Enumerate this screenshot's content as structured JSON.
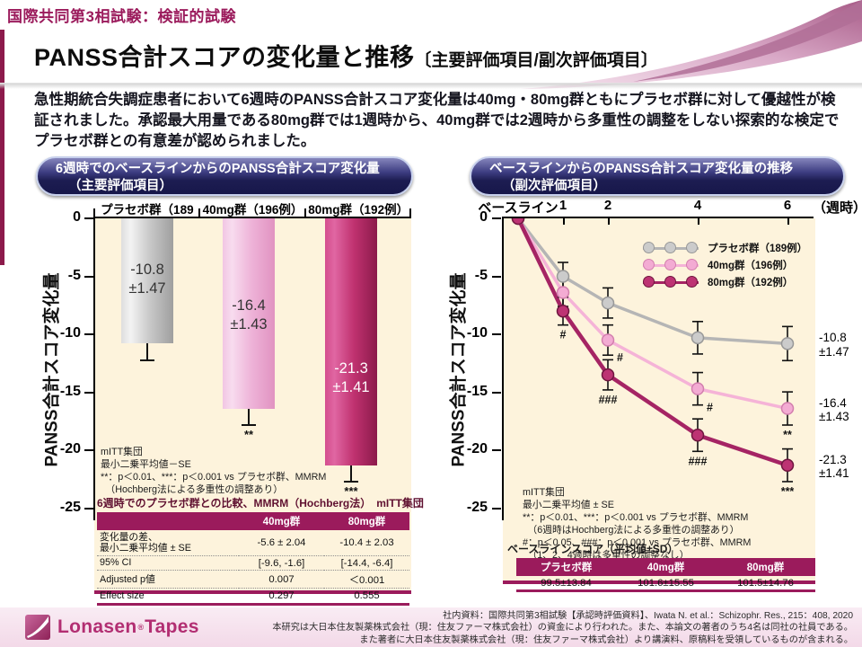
{
  "header": {
    "eyebrow": "国際共同第3相試験：検証的試験",
    "title_main": "PANSS合計スコアの変化量と推移",
    "title_sub": "〔主要評価項目/副次評価項目〕"
  },
  "intro": "急性期統合失調症患者において6週時のPANSS合計スコア変化量は40mg・80mg群ともにプラセボ群に対して優越性が検証されました。承認最大用量である80mg群では1週時から、40mg群では2週時から多重性の調整をしない探索的な検定でプラセボ群との有意差が認められました。",
  "colors": {
    "accent_magenta": "#9b1b5c",
    "pill_navy": "#1d1d52",
    "plot_cream": "#fdf3dc",
    "placebo_gray": "#b5b5b5",
    "dose40_pink": "#f5b3d7",
    "dose80_magenta": "#a52464",
    "logo_pink": "#b22e72"
  },
  "left_panel": {
    "pill_line1": "6週時でのベースラインからのPANSS合計スコア変化量",
    "pill_line2": "（主要評価項目）",
    "ylabel": "PANSS合計スコア変化量",
    "footnote": "mITT集団\n最小二乗平均値－SE\n**：p＜0.01、***：p＜0.001 vs プラセボ群、MMRM\n　（Hochberg法による多重性の調整あり）",
    "table": {
      "title": "6週時でのプラセボ群との比較、MMRM（Hochberg法）　mITT集団",
      "headers": [
        "",
        "40mg群",
        "80mg群"
      ],
      "rows": [
        [
          "変化量の差、\n最小二乗平均値 ± SE",
          "-5.6 ± 2.04",
          "-10.4 ± 2.03"
        ],
        [
          "95% CI",
          "[-9.6, -1.6]",
          "[-14.4, -6.4]"
        ],
        [
          "Adjusted p値",
          "0.007",
          "＜0.001"
        ],
        [
          "Effect size",
          "0.297",
          "0.555"
        ]
      ]
    }
  },
  "right_panel": {
    "pill_line1": "ベースラインからのPANSS合計スコア変化量の推移",
    "pill_line2": "（副次評価項目）",
    "ylabel": "PANSS合計スコア変化量",
    "x_unit": "（週時）",
    "footnote": "mITT集団\n最小二乗平均値 ± SE\n**：p＜0.01、***：p＜0.001 vs プラセボ群、MMRM\n　（6週時はHochberg法による多重性の調整あり）\n#：p＜0.05、###：p＜0.001 vs プラセボ群、MMRM\n　（1、2、4週時は多重性の調整なし）",
    "baseline_table": {
      "title": "ベースラインスコア（平均値±SD）",
      "headers": [
        "プラセボ群",
        "40mg群",
        "80mg群"
      ],
      "rows": [
        [
          "99.5±13.84",
          "101.6±15.55",
          "101.5±14.76"
        ]
      ]
    }
  },
  "chart_data": [
    {
      "type": "bar",
      "title": "6週時でのベースラインからのPANSS合計スコア変化量（主要評価項目）",
      "categories": [
        "プラセボ群（189例）",
        "40mg群（196例）",
        "80mg群（192例）"
      ],
      "values": [
        -10.8,
        -16.4,
        -21.3
      ],
      "errors": [
        1.47,
        1.43,
        1.41
      ],
      "value_labels": [
        "-10.8\n±1.47",
        "-16.4\n±1.43",
        "-21.3\n±1.41"
      ],
      "significance": [
        "",
        "**",
        "***"
      ],
      "label_colors": [
        "#333333",
        "#333333",
        "#ffffff"
      ],
      "bar_colors": [
        [
          "#dedede",
          "#f3f3f3",
          "#c8c8c8",
          "#9f9f9f"
        ],
        [
          "#f1c6e3",
          "#f8dcef",
          "#eeb3d8",
          "#e193c1"
        ],
        [
          "#d44d8e",
          "#e066a2",
          "#c03270",
          "#8c1a4b"
        ]
      ],
      "ylabel": "PANSS合計スコア変化量",
      "ylim": [
        -25,
        0
      ],
      "yticks": [
        0,
        -5,
        -10,
        -15,
        -20,
        -25
      ],
      "error_direction": "minus-SE"
    },
    {
      "type": "line",
      "title": "ベースラインからのPANSS合計スコア変化量の推移（副次評価項目）",
      "x": [
        0,
        1,
        2,
        4,
        6
      ],
      "x_tick_labels": [
        "ベースライン",
        "1",
        "2",
        "4",
        "6"
      ],
      "x_unit": "（週時）",
      "ylim": [
        -25,
        0
      ],
      "yticks": [
        0,
        -5,
        -10,
        -15,
        -20,
        -25
      ],
      "legend_position": "upper-right-inside",
      "series": [
        {
          "name": "プラセボ群（189例）",
          "values": [
            0,
            -5.0,
            -7.3,
            -10.3,
            -10.8
          ],
          "errors": [
            0,
            1.2,
            1.3,
            1.4,
            1.47
          ],
          "annotations": [
            "",
            "",
            "",
            "",
            ""
          ],
          "end_label": "-10.8\n±1.47",
          "color": "#b5b5b5",
          "marker_fill": "#cbcbcb",
          "marker_stroke": "#989898"
        },
        {
          "name": "40mg群（196例）",
          "values": [
            0,
            -6.4,
            -10.5,
            -14.7,
            -16.4
          ],
          "errors": [
            0,
            1.2,
            1.3,
            1.4,
            1.43
          ],
          "annotations": [
            "",
            "",
            "#",
            "#",
            "**"
          ],
          "end_label": "-16.4\n±1.43",
          "color": "#f5b3d7",
          "marker_fill": "#f3abd3",
          "marker_stroke": "#d37fae"
        },
        {
          "name": "80mg群（192例）",
          "values": [
            0,
            -8.0,
            -13.5,
            -18.7,
            -21.3
          ],
          "errors": [
            0,
            1.2,
            1.3,
            1.4,
            1.41
          ],
          "annotations": [
            "",
            "#",
            "###",
            "###",
            "***"
          ],
          "end_label": "-21.3\n±1.41",
          "color": "#a52464",
          "marker_fill": "#bd3373",
          "marker_stroke": "#6f163f"
        }
      ]
    }
  ],
  "footer": {
    "logo_text_1": "Lonasen",
    "logo_reg": "®",
    "logo_text_2": "Tapes",
    "lines": [
      "社内資料：国際共同第3相試験【承認時評価資料】、Iwata N. et al.：Schizophr. Res., 215：408, 2020",
      "本研究は大日本住友製薬株式会社（現：住友ファーマ株式会社）の資金により行われた。また、本論文の著者のうち4名は同社の社員である。",
      "また著者に大日本住友製薬株式会社（現：住友ファーマ株式会社）より講演料、原稿料を受領しているものが含まれる。"
    ]
  }
}
